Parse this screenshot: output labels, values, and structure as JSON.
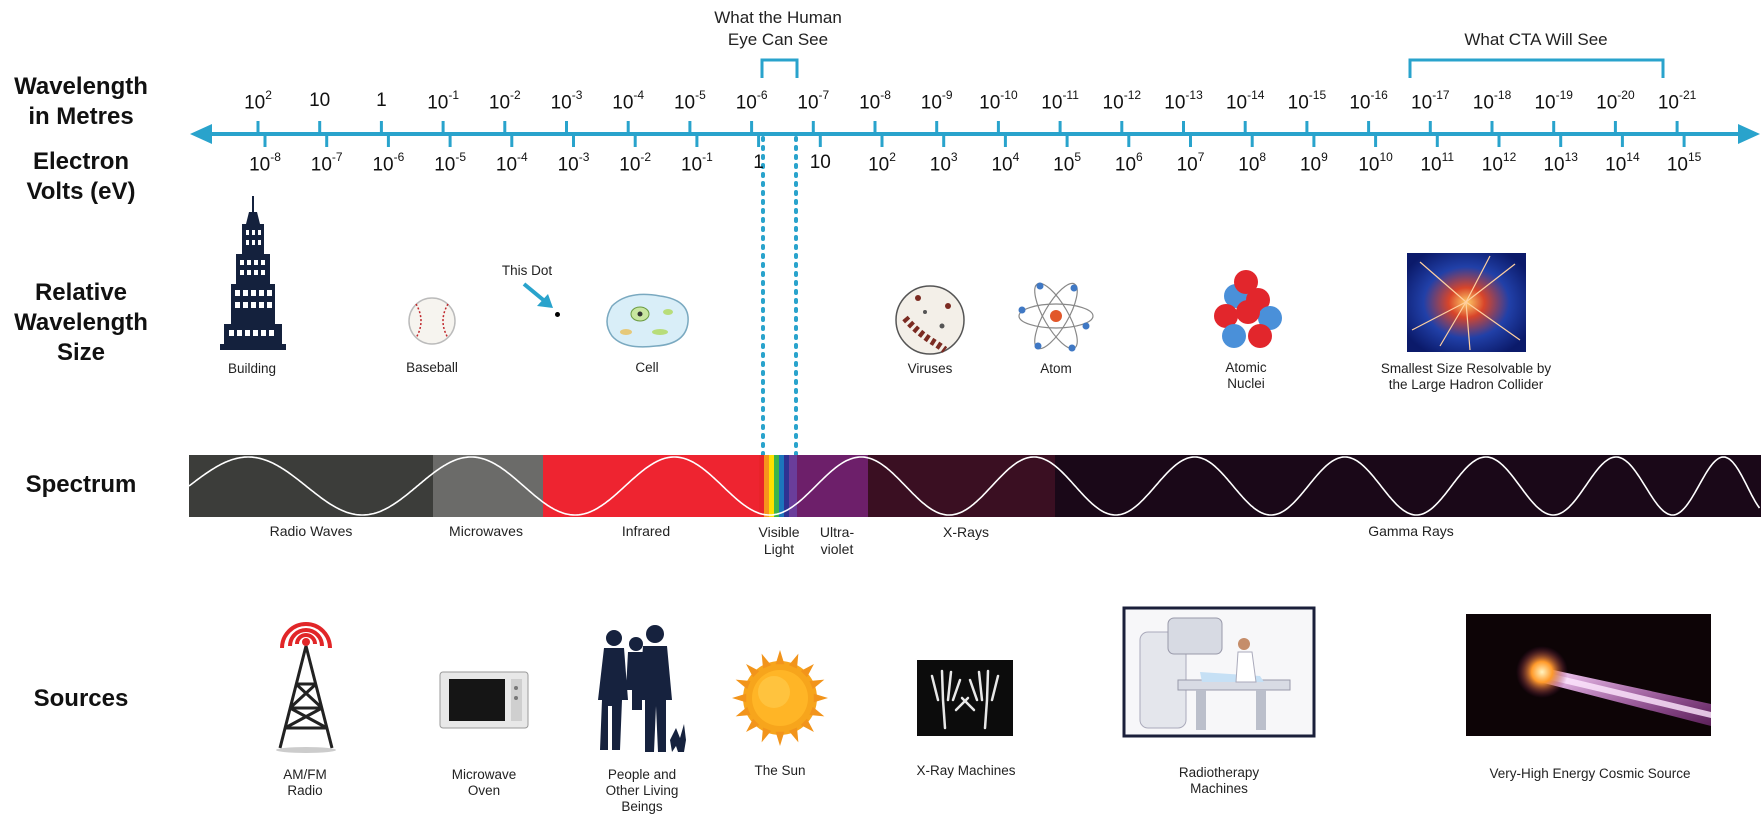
{
  "row_labels": {
    "wavelength": [
      "Wavelength",
      "in Metres"
    ],
    "energy": [
      "Electron",
      "Volts (eV)"
    ],
    "relative": [
      "Relative",
      "Wavelength",
      "Size"
    ],
    "spectrum": "Spectrum",
    "sources": "Sources"
  },
  "annotations": {
    "human_eye": [
      "What the Human",
      "Eye Can See"
    ],
    "cta": "What CTA Will See",
    "this_dot": "This Dot"
  },
  "wavelength_ticks": [
    {
      "base": "10",
      "exp": "2"
    },
    {
      "base": "10",
      "exp": ""
    },
    {
      "base": "1",
      "exp": ""
    },
    {
      "base": "10",
      "exp": "-1"
    },
    {
      "base": "10",
      "exp": "-2"
    },
    {
      "base": "10",
      "exp": "-3"
    },
    {
      "base": "10",
      "exp": "-4"
    },
    {
      "base": "10",
      "exp": "-5"
    },
    {
      "base": "10",
      "exp": "-6"
    },
    {
      "base": "10",
      "exp": "-7"
    },
    {
      "base": "10",
      "exp": "-8"
    },
    {
      "base": "10",
      "exp": "-9"
    },
    {
      "base": "10",
      "exp": "-10"
    },
    {
      "base": "10",
      "exp": "-11"
    },
    {
      "base": "10",
      "exp": "-12"
    },
    {
      "base": "10",
      "exp": "-13"
    },
    {
      "base": "10",
      "exp": "-14"
    },
    {
      "base": "10",
      "exp": "-15"
    },
    {
      "base": "10",
      "exp": "-16"
    },
    {
      "base": "10",
      "exp": "-17"
    },
    {
      "base": "10",
      "exp": "-18"
    },
    {
      "base": "10",
      "exp": "-19"
    },
    {
      "base": "10",
      "exp": "-20"
    },
    {
      "base": "10",
      "exp": "-21"
    }
  ],
  "energy_ticks": [
    {
      "base": "10",
      "exp": "-8"
    },
    {
      "base": "10",
      "exp": "-7"
    },
    {
      "base": "10",
      "exp": "-6"
    },
    {
      "base": "10",
      "exp": "-5"
    },
    {
      "base": "10",
      "exp": "-4"
    },
    {
      "base": "10",
      "exp": "-3"
    },
    {
      "base": "10",
      "exp": "-2"
    },
    {
      "base": "10",
      "exp": "-1"
    },
    {
      "base": "1",
      "exp": ""
    },
    {
      "base": "10",
      "exp": ""
    },
    {
      "base": "10",
      "exp": "2"
    },
    {
      "base": "10",
      "exp": "3"
    },
    {
      "base": "10",
      "exp": "4"
    },
    {
      "base": "10",
      "exp": "5"
    },
    {
      "base": "10",
      "exp": "6"
    },
    {
      "base": "10",
      "exp": "7"
    },
    {
      "base": "10",
      "exp": "8"
    },
    {
      "base": "10",
      "exp": "9"
    },
    {
      "base": "10",
      "exp": "10"
    },
    {
      "base": "10",
      "exp": "11"
    },
    {
      "base": "10",
      "exp": "12"
    },
    {
      "base": "10",
      "exp": "13"
    },
    {
      "base": "10",
      "exp": "14"
    },
    {
      "base": "10",
      "exp": "15"
    }
  ],
  "sizes": {
    "building": "Building",
    "baseball": "Baseball",
    "cell": "Cell",
    "viruses": "Viruses",
    "atom": "Atom",
    "nuclei": [
      "Atomic",
      "Nuclei"
    ],
    "lhc": [
      "Smallest Size Resolvable by",
      "the Large Hadron Collider"
    ]
  },
  "bands": {
    "radio": "Radio Waves",
    "microwaves": "Microwaves",
    "infrared": "Infrared",
    "visible": [
      "Visible",
      "Light"
    ],
    "uv": [
      "Ultra-",
      "violet"
    ],
    "xray": "X-Rays",
    "gamma": "Gamma Rays"
  },
  "sources": {
    "radio": [
      "AM/FM",
      "Radio"
    ],
    "oven": [
      "Microwave",
      "Oven"
    ],
    "people": [
      "People and",
      "Other Living",
      "Beings"
    ],
    "sun": "The Sun",
    "xray": "X-Ray Machines",
    "radiotherapy": [
      "Radiotherapy",
      "Machines"
    ],
    "cosmic": "Very-High Energy Cosmic Source"
  },
  "colors": {
    "axis": "#29a3cc",
    "radio": "#3c3d3a",
    "microwave": "#6b6b69",
    "infrared": "#ee2430",
    "uv": "#6d1f6a",
    "xray": "#3a0f22",
    "gamma": "#1a0818"
  }
}
